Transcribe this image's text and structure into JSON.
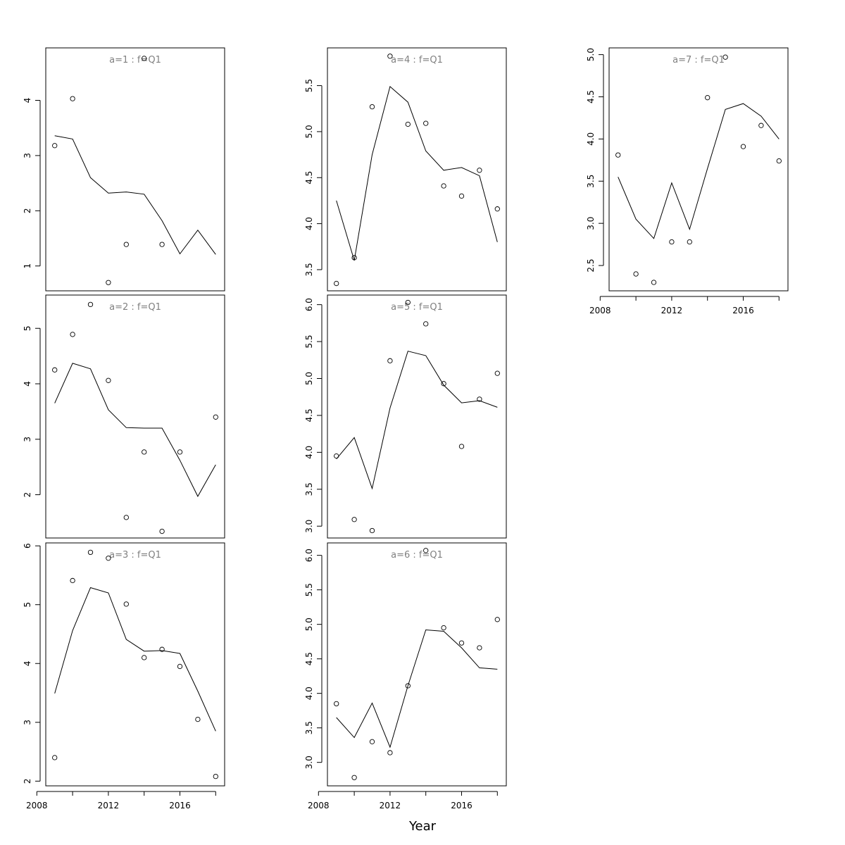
{
  "figure": {
    "xlabel": "Year"
  },
  "chart_data": [
    {
      "type": "scatter",
      "title": "a=1 : f=Q1",
      "x": [
        2009,
        2010,
        2011,
        2012,
        2013,
        2014,
        2015,
        2016,
        2017,
        2018
      ],
      "series": [
        {
          "kind": "points",
          "x": [
            2009,
            2010,
            2012,
            2013,
            2014,
            2015
          ],
          "values": [
            3.18,
            4.03,
            0.7,
            1.39,
            4.76,
            1.39
          ]
        },
        {
          "kind": "line",
          "values": [
            3.36,
            3.3,
            2.6,
            2.32,
            2.34,
            2.3,
            1.82,
            1.22,
            1.65,
            1.21
          ]
        }
      ],
      "ylim": [
        0.55,
        4.95
      ],
      "yticks": [
        1,
        2,
        3,
        4
      ],
      "xticks": [],
      "xlim": [
        2008.5,
        2018.5
      ]
    },
    {
      "type": "scatter",
      "title": "a=2 : f=Q1",
      "x": [
        2009,
        2010,
        2011,
        2012,
        2013,
        2014,
        2015,
        2016,
        2017,
        2018
      ],
      "series": [
        {
          "kind": "points",
          "x": [
            2009,
            2010,
            2011,
            2012,
            2013,
            2014,
            2015,
            2016,
            2018
          ],
          "values": [
            4.25,
            4.89,
            5.43,
            4.06,
            1.59,
            2.77,
            1.34,
            2.77,
            3.4
          ]
        },
        {
          "kind": "line",
          "values": [
            3.65,
            4.37,
            4.27,
            3.53,
            3.21,
            3.2,
            3.2,
            2.62,
            1.97,
            2.54
          ]
        }
      ],
      "ylim": [
        1.22,
        5.6
      ],
      "yticks": [
        2,
        3,
        4,
        5
      ],
      "xticks": [],
      "xlim": [
        2008.5,
        2018.5
      ]
    },
    {
      "type": "scatter",
      "title": "a=3 : f=Q1",
      "x": [
        2009,
        2010,
        2011,
        2012,
        2013,
        2014,
        2015,
        2016,
        2017,
        2018
      ],
      "series": [
        {
          "kind": "points",
          "values": [
            2.4,
            5.41,
            5.89,
            5.79,
            5.01,
            4.1,
            4.24,
            3.95,
            3.05,
            2.08
          ]
        },
        {
          "kind": "line",
          "values": [
            3.49,
            4.56,
            5.29,
            5.2,
            4.41,
            4.21,
            4.22,
            4.17,
            3.53,
            2.85
          ]
        }
      ],
      "ylim": [
        1.92,
        6.05
      ],
      "yticks": [
        2,
        3,
        4,
        5,
        6
      ],
      "xticks": [
        2008,
        2012,
        2016
      ],
      "xlim": [
        2008.5,
        2018.5
      ]
    },
    {
      "type": "scatter",
      "title": "a=4 : f=Q1",
      "x": [
        2009,
        2010,
        2011,
        2012,
        2013,
        2014,
        2015,
        2016,
        2017,
        2018
      ],
      "series": [
        {
          "kind": "points",
          "values": [
            3.35,
            3.63,
            5.27,
            5.82,
            5.08,
            5.09,
            4.41,
            4.3,
            4.58,
            4.16
          ]
        },
        {
          "kind": "line",
          "values": [
            4.25,
            3.6,
            4.75,
            5.49,
            5.32,
            4.79,
            4.58,
            4.61,
            4.52,
            3.8
          ]
        }
      ],
      "ylim": [
        3.27,
        5.91
      ],
      "yticks": [
        3.5,
        4.0,
        4.5,
        5.0,
        5.5
      ],
      "xticks": [],
      "xlim": [
        2008.5,
        2018.5
      ]
    },
    {
      "type": "scatter",
      "title": "a=5 : f=Q1",
      "x": [
        2009,
        2010,
        2011,
        2012,
        2013,
        2014,
        2015,
        2016,
        2017,
        2018
      ],
      "series": [
        {
          "kind": "points",
          "values": [
            3.95,
            3.09,
            2.94,
            5.24,
            6.03,
            5.74,
            4.93,
            4.08,
            4.72,
            5.07
          ]
        },
        {
          "kind": "line",
          "values": [
            3.91,
            4.2,
            3.51,
            4.6,
            5.37,
            5.31,
            4.91,
            4.67,
            4.7,
            4.61
          ]
        }
      ],
      "ylim": [
        2.84,
        6.13
      ],
      "yticks": [
        3.0,
        3.5,
        4.0,
        4.5,
        5.0,
        5.5,
        6.0
      ],
      "xticks": [],
      "xlim": [
        2008.5,
        2018.5
      ]
    },
    {
      "type": "scatter",
      "title": "a=6 : f=Q1",
      "x": [
        2009,
        2010,
        2011,
        2012,
        2013,
        2014,
        2015,
        2016,
        2017,
        2018
      ],
      "series": [
        {
          "kind": "points",
          "values": [
            3.85,
            2.78,
            3.3,
            3.14,
            4.11,
            6.07,
            4.95,
            4.73,
            4.66,
            5.07
          ]
        },
        {
          "kind": "line",
          "values": [
            3.65,
            3.36,
            3.86,
            3.22,
            4.11,
            4.92,
            4.9,
            4.66,
            4.37,
            4.35
          ]
        }
      ],
      "ylim": [
        2.66,
        6.18
      ],
      "yticks": [
        3.0,
        3.5,
        4.0,
        4.5,
        5.0,
        5.5,
        6.0
      ],
      "xticks": [
        2008,
        2012,
        2016
      ],
      "xlim": [
        2008.5,
        2018.5
      ]
    },
    {
      "type": "scatter",
      "title": "a=7 : f=Q1",
      "x": [
        2009,
        2010,
        2011,
        2012,
        2013,
        2014,
        2015,
        2016,
        2017,
        2018
      ],
      "series": [
        {
          "kind": "points",
          "values": [
            3.81,
            2.4,
            2.3,
            2.78,
            2.78,
            4.49,
            4.97,
            3.91,
            4.16,
            3.74
          ]
        },
        {
          "kind": "line",
          "values": [
            3.55,
            3.05,
            2.82,
            3.48,
            2.93,
            3.65,
            4.35,
            4.42,
            4.27,
            4.0
          ]
        }
      ],
      "ylim": [
        2.2,
        5.08
      ],
      "yticks": [
        2.5,
        3.0,
        3.5,
        4.0,
        4.5,
        5.0
      ],
      "xticks": [
        2008,
        2012,
        2016
      ],
      "xlim": [
        2008.5,
        2018.5
      ]
    }
  ]
}
